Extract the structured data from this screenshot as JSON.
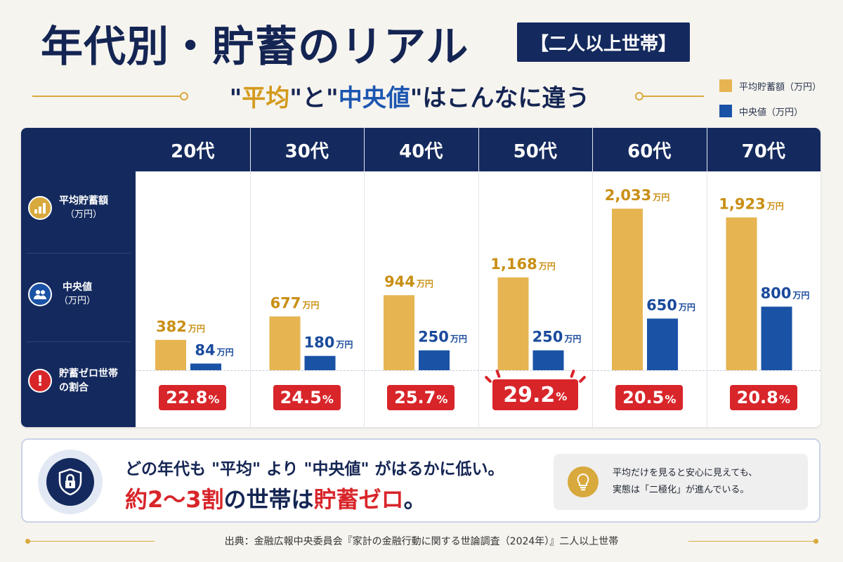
{
  "title": "年代別・貯蓄のリアル",
  "badge": "【二人以上世帯】",
  "subtitle": {
    "q1": "\"",
    "avg": "平均",
    "q2": "\"と\"",
    "med": "中央値",
    "q3": "\"はこんなに違う"
  },
  "legend": {
    "avg": "平均貯蓄額（万円）",
    "med": "中央値（万円）"
  },
  "row_labels": {
    "avg": {
      "title": "平均貯蓄額",
      "sub": "（万円）"
    },
    "med": {
      "title": "中央値",
      "sub": "（万円）"
    },
    "zero": {
      "title1": "貯蓄ゼロ世帯",
      "title2": "の割合"
    }
  },
  "pct_unit": "%",
  "chart_data": {
    "type": "bar",
    "categories": [
      "20代",
      "30代",
      "40代",
      "50代",
      "60代",
      "70代"
    ],
    "series": [
      {
        "name": "平均貯蓄額（万円）",
        "values": [
          382,
          677,
          944,
          1168,
          2033,
          1923
        ],
        "labels": [
          "382",
          "677",
          "944",
          "1,168",
          "2,033",
          "1,923"
        ]
      },
      {
        "name": "中央値（万円）",
        "values": [
          84,
          180,
          250,
          250,
          650,
          800
        ],
        "labels": [
          "84",
          "180",
          "250",
          "250",
          "650",
          "800"
        ]
      }
    ],
    "value_unit": "万円",
    "zero_savings_rate": {
      "name": "貯蓄ゼロ世帯の割合",
      "values": [
        22.8,
        24.5,
        25.7,
        29.2,
        20.5,
        20.8
      ],
      "labels": [
        "22.8",
        "24.5",
        "25.7",
        "29.2",
        "20.5",
        "20.8"
      ],
      "highlight_index": 3
    },
    "ylim": [
      0,
      2033
    ],
    "colors": {
      "avg": "#e6b552",
      "med": "#1a52a6"
    },
    "legend_position": "top-right",
    "grid": false
  },
  "summary": {
    "line1": "どの年代も \"平均\" より \"中央値\" がはるかに低い。",
    "line2_a": "約2〜3割",
    "line2_b": "の世帯は",
    "line2_c": "貯蓄ゼロ",
    "line2_d": "。"
  },
  "tip": {
    "line1": "平均だけを見ると安心に見えても、",
    "line2": "実態は「二極化」が進んでいる。"
  },
  "source": "出典：金融広報中央委員会『家計の金融行動に関する世論調査（2024年）』二人以上世帯",
  "icons": {
    "bar_chart": "bar-chart-icon",
    "people": "people-icon",
    "alert": "alert-icon",
    "lock": "lock-shield-icon",
    "bulb": "lightbulb-icon"
  }
}
